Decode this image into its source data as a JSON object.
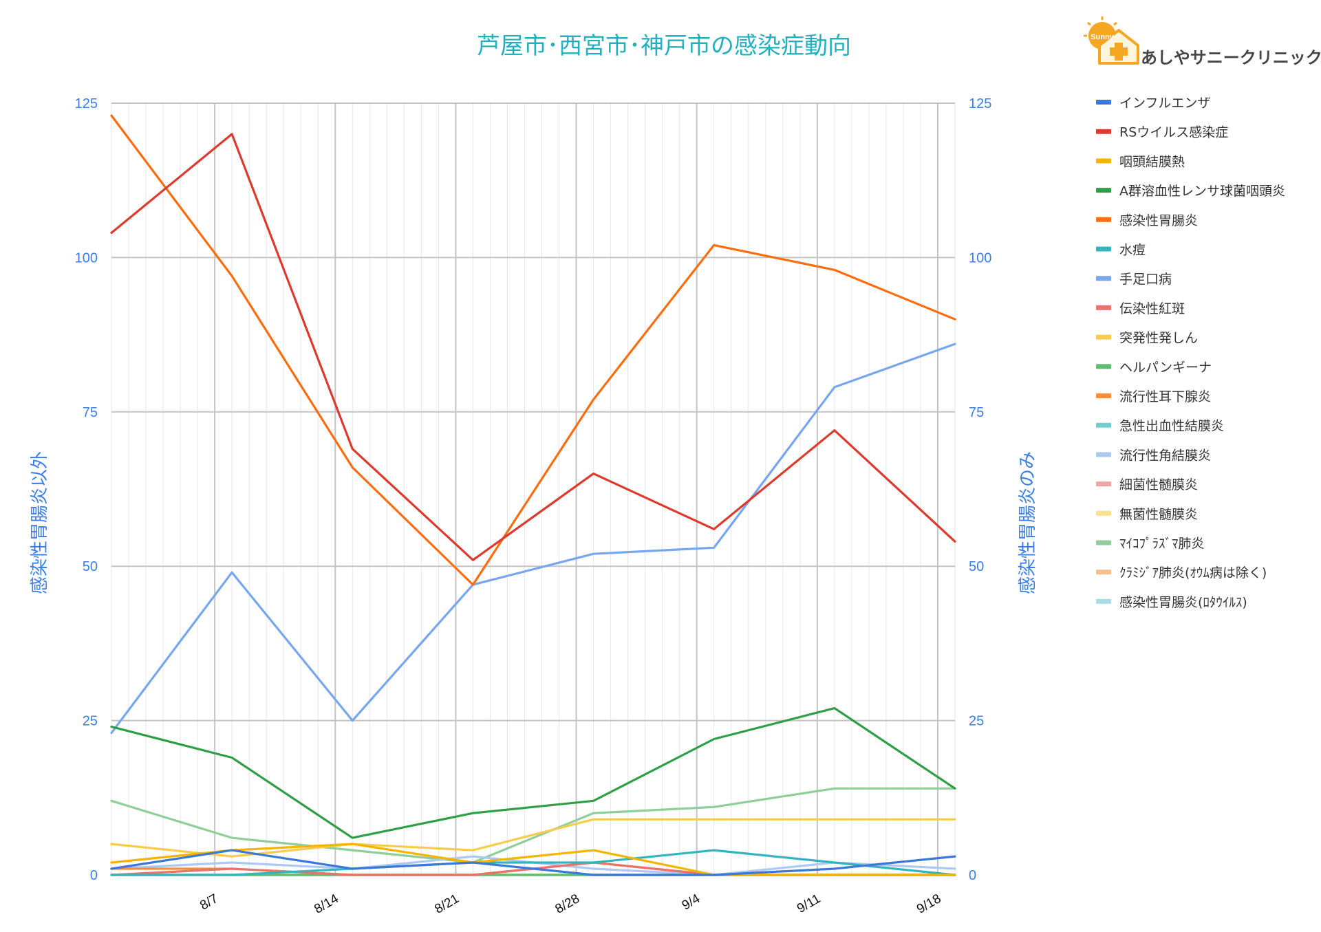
{
  "brand": {
    "name": "あしやサニークリニック",
    "logo_word": "Sunny"
  },
  "chart_data": {
    "type": "line",
    "title": "芦屋市･西宮市･神戸市の感染症動向",
    "ylabel_left": "感染性胃腸炎以外",
    "ylabel_right": "感染性胃腸炎のみ",
    "ylim_left": [
      0,
      125
    ],
    "ylim_right": [
      0,
      125
    ],
    "yticks": [
      0,
      25,
      50,
      75,
      100,
      125
    ],
    "grid": true,
    "legend_position": "right",
    "x_tick_labels": [
      "8/7",
      "8/14",
      "8/21",
      "8/28",
      "9/4",
      "9/11",
      "9/18"
    ],
    "x": [
      "8/1",
      "8/8",
      "8/15",
      "8/22",
      "8/29",
      "9/5",
      "9/12",
      "9/19"
    ],
    "series": [
      {
        "name": "インフルエンザ",
        "color": "#3c78d8",
        "axis": "left",
        "values": [
          1,
          4,
          1,
          2,
          0,
          0,
          1,
          3
        ]
      },
      {
        "name": "RSウイルス感染症",
        "color": "#db3a2c",
        "axis": "left",
        "values": [
          104,
          120,
          69,
          51,
          65,
          56,
          72,
          54
        ]
      },
      {
        "name": "咽頭結膜熱",
        "color": "#f4b400",
        "axis": "left",
        "values": [
          2,
          4,
          5,
          2,
          4,
          0,
          0,
          0
        ]
      },
      {
        "name": "A群溶血性レンサ球菌咽頭炎",
        "color": "#2e9e47",
        "axis": "left",
        "values": [
          24,
          19,
          6,
          10,
          12,
          22,
          27,
          14
        ]
      },
      {
        "name": "感染性胃腸炎",
        "color": "#fb6d0e",
        "axis": "right",
        "values": [
          123,
          97,
          66,
          47,
          77,
          102,
          98,
          90
        ]
      },
      {
        "name": "水痘",
        "color": "#33b5bf",
        "axis": "left",
        "values": [
          0,
          0,
          1,
          2,
          2,
          4,
          2,
          0
        ]
      },
      {
        "name": "手足口病",
        "color": "#76a6f0",
        "axis": "left",
        "values": [
          23,
          49,
          25,
          47,
          52,
          53,
          79,
          86
        ]
      },
      {
        "name": "伝染性紅斑",
        "color": "#e6746b",
        "axis": "left",
        "values": [
          0,
          1,
          0,
          0,
          2,
          0,
          0,
          0
        ]
      },
      {
        "name": "突発性発しん",
        "color": "#f6cc4a",
        "axis": "left",
        "values": [
          5,
          3,
          5,
          4,
          9,
          9,
          9,
          9
        ]
      },
      {
        "name": "ヘルパンギーナ",
        "color": "#5cbf6e",
        "axis": "left",
        "values": [
          0,
          0,
          0,
          0,
          0,
          0,
          0,
          0
        ]
      },
      {
        "name": "流行性耳下腺炎",
        "color": "#f58f40",
        "axis": "left",
        "values": [
          1,
          1,
          0,
          0,
          2,
          0,
          0,
          0
        ]
      },
      {
        "name": "急性出血性結膜炎",
        "color": "#6fcfcf",
        "axis": "left",
        "values": [
          0,
          0,
          0,
          0,
          0,
          0,
          0,
          0
        ]
      },
      {
        "name": "流行性角結膜炎",
        "color": "#adc8f5",
        "axis": "left",
        "values": [
          1,
          2,
          1,
          3,
          1,
          0,
          2,
          1
        ]
      },
      {
        "name": "細菌性髄膜炎",
        "color": "#f0a3a3",
        "axis": "left",
        "values": [
          0,
          0,
          0,
          0,
          0,
          0,
          0,
          0
        ]
      },
      {
        "name": "無菌性髄膜炎",
        "color": "#fae28c",
        "axis": "left",
        "values": [
          0,
          0,
          0,
          0,
          0,
          0,
          0,
          0
        ]
      },
      {
        "name": "ﾏｲｺﾌﾟﾗｽﾞﾏ肺炎",
        "color": "#8ecf99",
        "axis": "left",
        "values": [
          12,
          6,
          4,
          2,
          10,
          11,
          14,
          14
        ]
      },
      {
        "name": "ｸﾗﾐｼﾞｱ肺炎(ｵｳﾑ病は除く)",
        "color": "#f9bf8f",
        "axis": "left",
        "values": [
          0,
          0,
          0,
          0,
          0,
          0,
          0,
          0
        ]
      },
      {
        "name": "感染性胃腸炎(ﾛﾀｳｲﾙｽ)",
        "color": "#a8dde3",
        "axis": "left",
        "values": [
          0,
          0,
          0,
          0,
          0,
          0,
          0,
          0
        ]
      }
    ]
  }
}
